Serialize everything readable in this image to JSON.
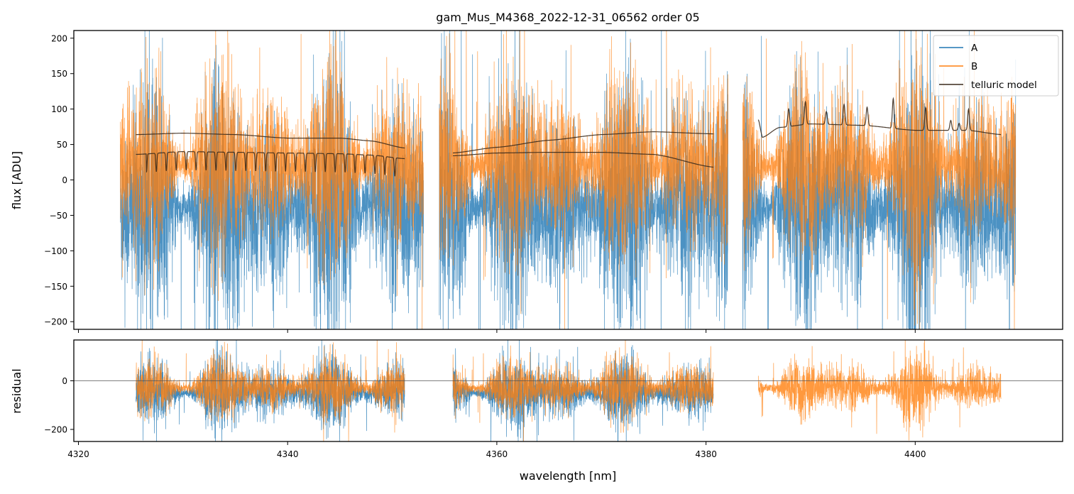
{
  "chart_data": [
    {
      "panel": "main",
      "type": "line",
      "title": "gam_Mus_M4368_2022-12-31_06562  order 05",
      "xlabel": "",
      "ylabel": "flux [ADU]",
      "xlim": [
        4320,
        4414
      ],
      "ylim": [
        -210,
        210
      ],
      "yticks": [
        -200,
        -150,
        -100,
        -50,
        0,
        50,
        100,
        150,
        200
      ],
      "xticks": [
        4320,
        4340,
        4360,
        4380,
        4400
      ],
      "x_tick_labels_shown": false,
      "grid": false,
      "legend_position": "top-right",
      "segments_nm": [
        [
          4324.0,
          4353.0
        ],
        [
          4354.5,
          4382.1
        ],
        [
          4383.5,
          4409.6
        ]
      ],
      "series": [
        {
          "name": "A",
          "color": "#1f77b4",
          "noise_center": -40,
          "noise_amplitude": 120,
          "note_range": "spans full ylim"
        },
        {
          "name": "B",
          "color": "#ff7f0e",
          "noise_center": 20,
          "noise_amplitude": 90
        },
        {
          "name": "telluric model",
          "color": "#3a2a1c",
          "curves": [
            {
              "x": [
                4325.5,
                4330,
                4335,
                4340,
                4345,
                4348,
                4351.2
              ],
              "y": [
                64,
                66,
                64,
                59,
                59,
                55,
                45
              ]
            },
            {
              "x": [
                4325.5,
                4330,
                4335,
                4340,
                4345,
                4348,
                4351.2
              ],
              "y": [
                36,
                40,
                39,
                38,
                37,
                35,
                30
              ],
              "absorption_spacing_nm": 0.95,
              "absorption_depth": 26,
              "absorption_range": [
                4326.5,
                4350.5
              ]
            },
            {
              "x": [
                4355.8,
                4360,
                4365,
                4370,
                4375,
                4380.7
              ],
              "y": [
                38,
                46,
                56,
                64,
                68,
                65
              ]
            },
            {
              "x": [
                4355.8,
                4360,
                4365,
                4370,
                4375,
                4380.7
              ],
              "y": [
                34,
                38,
                39,
                39,
                36,
                18
              ]
            },
            {
              "x": [
                4385.0,
                4385.4,
                4387,
                4390,
                4395,
                4400,
                4405,
                4408.2
              ],
              "y": [
                85,
                60,
                74,
                79,
                77,
                70,
                70,
                64
              ],
              "emission_peaks": [
                [
                  4387.9,
                  25
                ],
                [
                  4389.5,
                  32
                ],
                [
                  4391.5,
                  18
                ],
                [
                  4393.2,
                  29
                ],
                [
                  4395.4,
                  26
                ],
                [
                  4397.9,
                  42
                ],
                [
                  4401.0,
                  32
                ],
                [
                  4403.4,
                  14
                ],
                [
                  4404.2,
                  10
                ],
                [
                  4405.1,
                  30
                ]
              ]
            }
          ]
        }
      ]
    },
    {
      "panel": "residual",
      "type": "line",
      "xlabel": "wavelength [nm]",
      "ylabel": "residual",
      "xlim": [
        4320,
        4414
      ],
      "ylim": [
        -250,
        165
      ],
      "yticks": [
        -200,
        0
      ],
      "xticks": [
        4320,
        4340,
        4360,
        4380,
        4400
      ],
      "zero_line": true,
      "segments_nm": [
        [
          4325.5,
          4351.2
        ],
        [
          4355.8,
          4380.7
        ],
        [
          4385.0,
          4408.2
        ]
      ],
      "series": [
        {
          "name": "A",
          "color": "#1f77b4",
          "noise_center": -50,
          "noise_amplitude": 95,
          "segments_used": [
            0,
            1
          ]
        },
        {
          "name": "B",
          "color": "#ff7f0e",
          "noise_center": -30,
          "noise_amplitude": 80,
          "segments_used": [
            0,
            1,
            2
          ]
        }
      ]
    }
  ],
  "labels": {
    "title": "gam_Mus_M4368_2022-12-31_06562  order 05",
    "top_ylabel": "flux [ADU]",
    "bottom_ylabel": "residual",
    "xlabel": "wavelength [nm]",
    "legend": [
      "A",
      "B",
      "telluric model"
    ]
  }
}
